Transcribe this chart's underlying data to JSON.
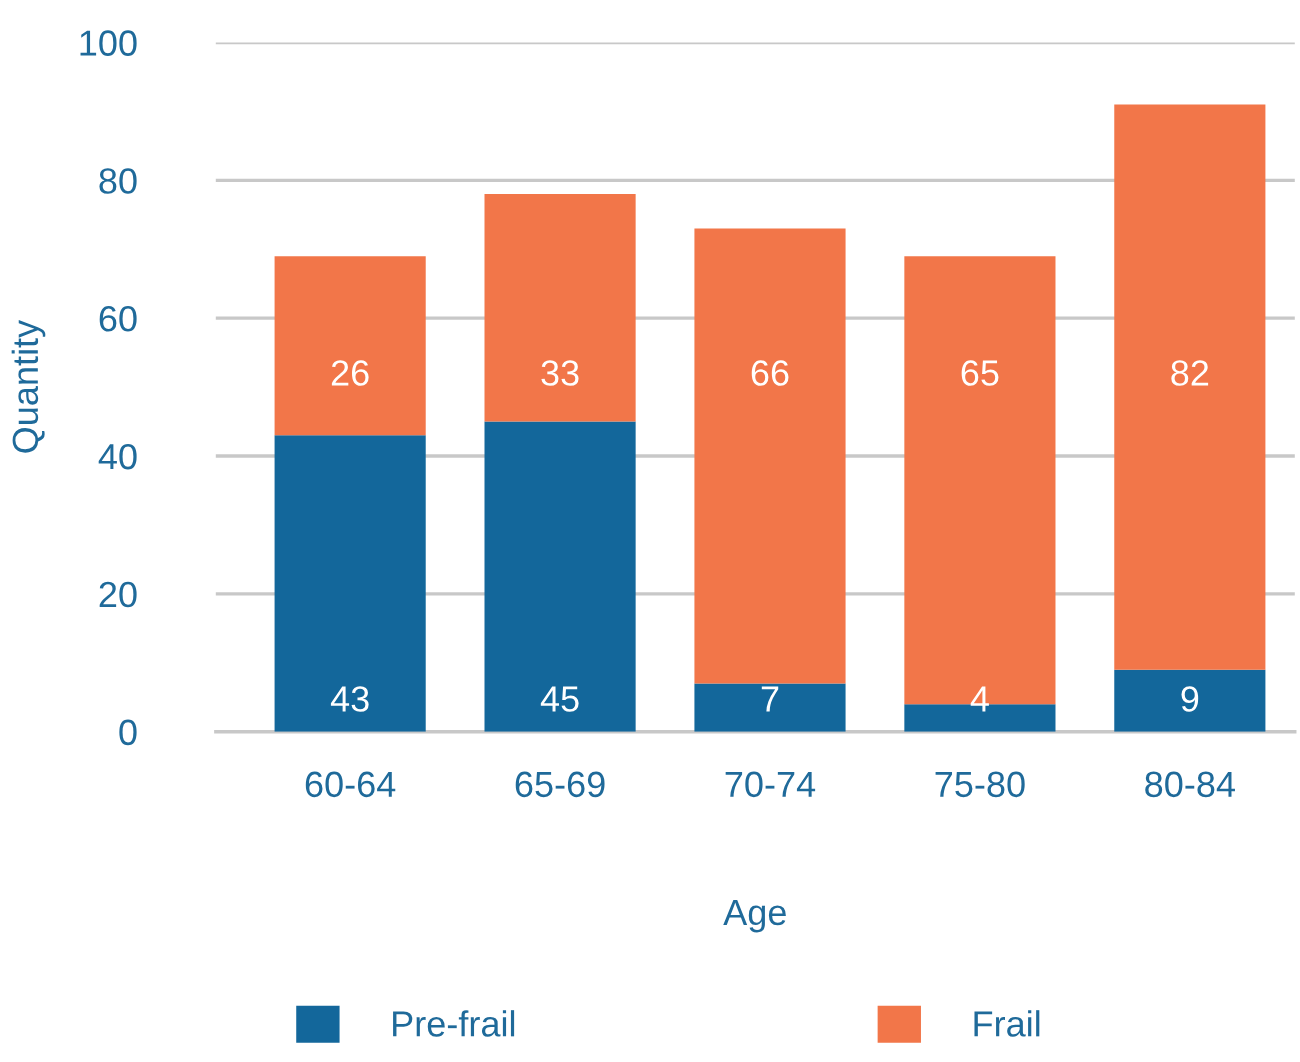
{
  "chart_data": {
    "type": "bar",
    "stacked": true,
    "xlabel": "Age",
    "ylabel": "Quantity",
    "categories": [
      "60-64",
      "65-69",
      "70-74",
      "75-80",
      "80-84"
    ],
    "series": [
      {
        "name": "Pre-frail",
        "color": "#13679b",
        "values": [
          43,
          45,
          7,
          4,
          9
        ]
      },
      {
        "name": "Frail",
        "color": "#f27649",
        "values": [
          26,
          33,
          66,
          65,
          82
        ]
      }
    ],
    "ylim": [
      0,
      100
    ],
    "yticks": [
      0,
      20,
      40,
      60,
      80,
      100
    ],
    "grid": "y",
    "legend": "bottom",
    "data_labels": true
  }
}
